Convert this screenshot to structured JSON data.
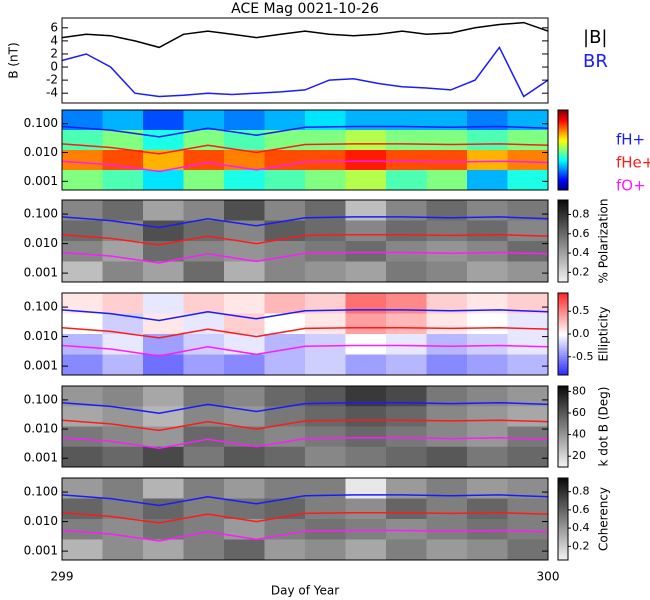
{
  "chart_data": [
    {
      "type": "line",
      "title": "ACE Mag 0021-10-26",
      "ylabel": "B (nT)",
      "x": [
        299,
        299.05,
        299.1,
        299.15,
        299.2,
        299.25,
        299.3,
        299.35,
        299.4,
        299.45,
        299.5,
        299.55,
        299.6,
        299.65,
        299.7,
        299.75,
        299.8,
        299.85,
        299.9,
        299.95,
        300
      ],
      "xlim": [
        299,
        300
      ],
      "ylim": [
        -5.5,
        7.5
      ],
      "yticks": [
        -4,
        -2,
        0,
        2,
        4,
        6
      ],
      "series": [
        {
          "name": "|B|",
          "color": "#000000",
          "values": [
            4.5,
            5,
            4.8,
            4,
            3,
            5,
            5.5,
            5,
            4.5,
            5,
            5.5,
            5,
            4.8,
            5,
            5.5,
            5,
            5.2,
            6,
            6.5,
            6.8,
            5.5
          ]
        },
        {
          "name": "BR",
          "color": "#1a1aff",
          "values": [
            1,
            2,
            0,
            -4,
            -4.5,
            -4.3,
            -4,
            -4.2,
            -4,
            -3.8,
            -3.5,
            -2,
            -1.8,
            -2.5,
            -3,
            -3.2,
            -3.5,
            -2,
            3,
            -4.5,
            -2
          ]
        }
      ]
    },
    {
      "type": "heatmap",
      "colormap": "jet",
      "zlim": [
        0,
        1
      ],
      "log_y": true,
      "x": [
        299,
        299.1,
        299.2,
        299.3,
        299.4,
        299.5,
        299.6,
        299.7,
        299.8,
        299.9,
        300
      ],
      "xlim": [
        299,
        300
      ],
      "ylim": [
        0.0005,
        0.3
      ],
      "yticks": [
        0.001,
        {
          "value": 0.01,
          "label": "0.010"
        },
        {
          "value": 0.1,
          "label": "0.100"
        }
      ],
      "z": [
        [
          0.25,
          0.3,
          0.2,
          0.3,
          0.25,
          0.3,
          0.35,
          0.3,
          0.3,
          0.3,
          0.25,
          0.3
        ],
        [
          0.45,
          0.5,
          0.4,
          0.5,
          0.45,
          0.5,
          0.5,
          0.55,
          0.5,
          0.5,
          0.45,
          0.5
        ],
        [
          0.75,
          0.8,
          0.7,
          0.8,
          0.75,
          0.8,
          0.8,
          0.85,
          0.8,
          0.8,
          0.7,
          0.75
        ],
        [
          0.5,
          0.45,
          0.35,
          0.5,
          0.4,
          0.45,
          0.5,
          0.55,
          0.45,
          0.5,
          0.3,
          0.4
        ]
      ],
      "series": [
        {
          "name": "fH+",
          "color": "#1a1aff",
          "values": [
            0.08,
            0.06,
            0.035,
            0.07,
            0.04,
            0.075,
            0.08,
            0.08,
            0.075,
            0.08,
            0.07
          ]
        },
        {
          "name": "fHe+",
          "color": "#ff1a1a",
          "values": [
            0.02,
            0.015,
            0.009,
            0.018,
            0.01,
            0.019,
            0.02,
            0.02,
            0.019,
            0.02,
            0.018
          ]
        },
        {
          "name": "fO+",
          "color": "#ff1aff",
          "values": [
            0.005,
            0.0038,
            0.0022,
            0.0045,
            0.0025,
            0.0047,
            0.005,
            0.005,
            0.0047,
            0.005,
            0.0045
          ]
        }
      ]
    },
    {
      "type": "heatmap",
      "colormap": "gray_r",
      "zlim": [
        0.1,
        0.95
      ],
      "log_y": true,
      "colorbar_label": "% Polarization",
      "colorbar_ticks": [
        0.2,
        0.4,
        0.6,
        0.8
      ],
      "x": [
        299,
        299.1,
        299.2,
        299.3,
        299.4,
        299.5,
        299.6,
        299.7,
        299.8,
        299.9,
        300
      ],
      "xlim": [
        299,
        300
      ],
      "ylim": [
        0.0005,
        0.3
      ],
      "yticks": [
        0.001,
        {
          "value": 0.01,
          "label": "0.010"
        },
        {
          "value": 0.1,
          "label": "0.100"
        }
      ],
      "z": [
        [
          0.5,
          0.6,
          0.4,
          0.5,
          0.7,
          0.5,
          0.6,
          0.3,
          0.5,
          0.6,
          0.5,
          0.55
        ],
        [
          0.6,
          0.5,
          0.7,
          0.6,
          0.5,
          0.65,
          0.6,
          0.5,
          0.6,
          0.55,
          0.6,
          0.5
        ],
        [
          0.5,
          0.4,
          0.6,
          0.5,
          0.45,
          0.5,
          0.55,
          0.6,
          0.5,
          0.45,
          0.5,
          0.6
        ],
        [
          0.3,
          0.5,
          0.4,
          0.6,
          0.35,
          0.5,
          0.45,
          0.4,
          0.55,
          0.5,
          0.4,
          0.45
        ]
      ],
      "series": [
        {
          "color": "#1a1aff",
          "values": [
            0.08,
            0.06,
            0.035,
            0.07,
            0.04,
            0.075,
            0.08,
            0.08,
            0.075,
            0.08,
            0.07
          ]
        },
        {
          "color": "#ff1a1a",
          "values": [
            0.02,
            0.015,
            0.009,
            0.018,
            0.01,
            0.019,
            0.02,
            0.02,
            0.019,
            0.02,
            0.018
          ]
        },
        {
          "color": "#ff1aff",
          "values": [
            0.005,
            0.0038,
            0.0022,
            0.0045,
            0.0025,
            0.0047,
            0.005,
            0.005,
            0.0047,
            0.005,
            0.0045
          ]
        }
      ]
    },
    {
      "type": "heatmap",
      "colormap": "bwr",
      "zlim": [
        -0.9,
        0.9
      ],
      "log_y": true,
      "colorbar_label": "Ellipticity",
      "colorbar_ticks": [
        -0.5,
        {
          "value": 0,
          "label": "0.0"
        },
        0.5
      ],
      "x": [
        299,
        299.1,
        299.2,
        299.3,
        299.4,
        299.5,
        299.6,
        299.7,
        299.8,
        299.9,
        300
      ],
      "xlim": [
        299,
        300
      ],
      "ylim": [
        0.0005,
        0.3
      ],
      "yticks": [
        0.001,
        {
          "value": 0.01,
          "label": "0.010"
        },
        {
          "value": 0.1,
          "label": "0.100"
        }
      ],
      "z": [
        [
          0.1,
          0.2,
          -0.1,
          0.2,
          0.1,
          0.3,
          0.2,
          0.6,
          0.5,
          0.2,
          0.1,
          0.2
        ],
        [
          0,
          -0.2,
          0.1,
          -0.1,
          0.2,
          0,
          0.1,
          0.4,
          0.3,
          0.1,
          0,
          -0.1
        ],
        [
          -0.3,
          -0.1,
          -0.4,
          -0.2,
          -0.1,
          -0.3,
          -0.2,
          0,
          -0.1,
          -0.3,
          -0.2,
          -0.1
        ],
        [
          -0.5,
          -0.3,
          -0.6,
          -0.4,
          -0.5,
          -0.3,
          -0.2,
          -0.4,
          -0.3,
          -0.5,
          -0.4,
          -0.3
        ]
      ],
      "series": [
        {
          "color": "#1a1aff",
          "values": [
            0.08,
            0.06,
            0.035,
            0.07,
            0.04,
            0.075,
            0.08,
            0.08,
            0.075,
            0.08,
            0.07
          ]
        },
        {
          "color": "#ff1a1a",
          "values": [
            0.02,
            0.015,
            0.009,
            0.018,
            0.01,
            0.019,
            0.02,
            0.02,
            0.019,
            0.02,
            0.018
          ]
        },
        {
          "color": "#ff1aff",
          "values": [
            0.005,
            0.0038,
            0.0022,
            0.0045,
            0.0025,
            0.0047,
            0.005,
            0.005,
            0.0047,
            0.005,
            0.0045
          ]
        }
      ]
    },
    {
      "type": "heatmap",
      "colormap": "gray_r",
      "zlim": [
        10,
        85
      ],
      "log_y": true,
      "colorbar_label": "k dot B (Deg)",
      "colorbar_ticks": [
        20,
        40,
        60,
        80
      ],
      "x": [
        299,
        299.1,
        299.2,
        299.3,
        299.4,
        299.5,
        299.6,
        299.7,
        299.8,
        299.9,
        300
      ],
      "xlim": [
        299,
        300
      ],
      "ylim": [
        0.0005,
        0.3
      ],
      "yticks": [
        0.001,
        {
          "value": 0.01,
          "label": "0.010"
        },
        {
          "value": 0.1,
          "label": "0.100"
        }
      ],
      "z": [
        [
          40,
          45,
          35,
          50,
          45,
          55,
          60,
          70,
          65,
          50,
          45,
          40
        ],
        [
          35,
          40,
          30,
          45,
          40,
          50,
          55,
          60,
          55,
          45,
          40,
          35
        ],
        [
          50,
          45,
          40,
          55,
          50,
          45,
          50,
          55,
          50,
          45,
          40,
          50
        ],
        [
          60,
          55,
          65,
          50,
          60,
          55,
          45,
          50,
          55,
          60,
          50,
          55
        ]
      ],
      "series": [
        {
          "color": "#1a1aff",
          "values": [
            0.08,
            0.06,
            0.035,
            0.07,
            0.04,
            0.075,
            0.08,
            0.08,
            0.075,
            0.08,
            0.07
          ]
        },
        {
          "color": "#ff1a1a",
          "values": [
            0.02,
            0.015,
            0.009,
            0.018,
            0.01,
            0.019,
            0.02,
            0.02,
            0.019,
            0.02,
            0.018
          ]
        },
        {
          "color": "#ff1aff",
          "values": [
            0.005,
            0.0038,
            0.0022,
            0.0045,
            0.0025,
            0.0047,
            0.005,
            0.005,
            0.0047,
            0.005,
            0.0045
          ]
        }
      ]
    },
    {
      "type": "heatmap",
      "colormap": "gray_r",
      "zlim": [
        0.05,
        0.95
      ],
      "log_y": true,
      "colorbar_label": "Coherency",
      "colorbar_ticks": [
        0.2,
        0.4,
        0.6,
        0.8
      ],
      "xlabel": "Day of Year",
      "xticks": [
        299,
        300
      ],
      "x": [
        299,
        299.1,
        299.2,
        299.3,
        299.4,
        299.5,
        299.6,
        299.7,
        299.8,
        299.9,
        300
      ],
      "xlim": [
        299,
        300
      ],
      "ylim": [
        0.0005,
        0.3
      ],
      "yticks": [
        0.001,
        {
          "value": 0.01,
          "label": "0.010"
        },
        {
          "value": 0.1,
          "label": "0.100"
        }
      ],
      "z": [
        [
          0.4,
          0.5,
          0.3,
          0.5,
          0.4,
          0.5,
          0.5,
          0.1,
          0.4,
          0.5,
          0.4,
          0.45
        ],
        [
          0.6,
          0.5,
          0.6,
          0.5,
          0.55,
          0.6,
          0.5,
          0.45,
          0.6,
          0.5,
          0.6,
          0.5
        ],
        [
          0.5,
          0.45,
          0.55,
          0.5,
          0.4,
          0.5,
          0.55,
          0.5,
          0.45,
          0.5,
          0.55,
          0.5
        ],
        [
          0.3,
          0.45,
          0.35,
          0.5,
          0.6,
          0.4,
          0.45,
          0.35,
          0.5,
          0.4,
          0.45,
          0.55
        ]
      ],
      "series": [
        {
          "color": "#1a1aff",
          "values": [
            0.08,
            0.06,
            0.035,
            0.07,
            0.04,
            0.075,
            0.08,
            0.08,
            0.075,
            0.08,
            0.07
          ]
        },
        {
          "color": "#ff1a1a",
          "values": [
            0.02,
            0.015,
            0.009,
            0.018,
            0.01,
            0.019,
            0.02,
            0.02,
            0.019,
            0.02,
            0.018
          ]
        },
        {
          "color": "#ff1aff",
          "values": [
            0.005,
            0.0038,
            0.0022,
            0.0045,
            0.0025,
            0.0047,
            0.005,
            0.005,
            0.0047,
            0.005,
            0.0045
          ]
        }
      ]
    }
  ]
}
